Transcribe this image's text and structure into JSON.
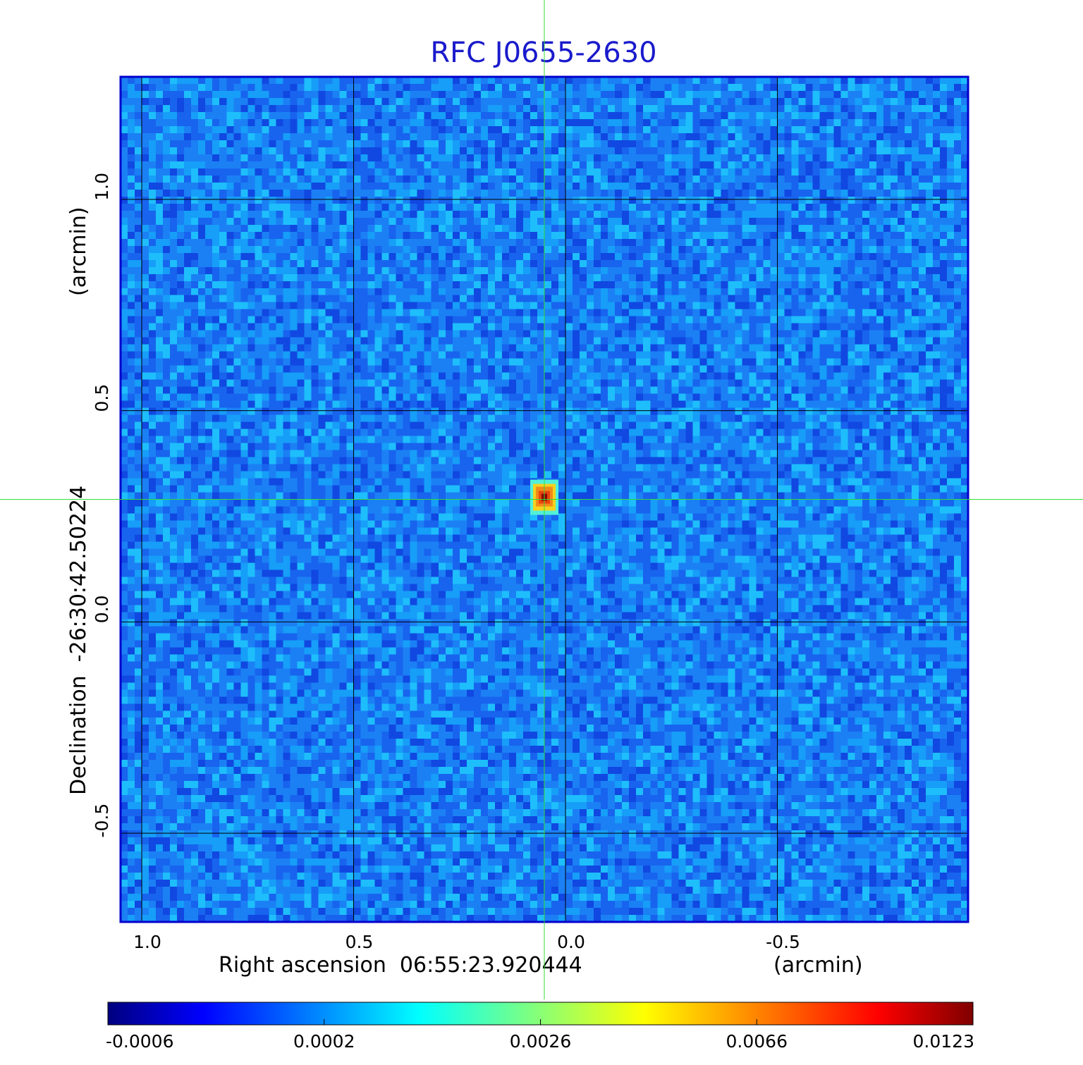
{
  "colors": {
    "title": "#1a1acc",
    "frame": "#0000cc",
    "grid": "#000000",
    "crosshair": "#33dd33",
    "background_field": "#1e6ef0"
  },
  "chart_data": {
    "type": "heatmap",
    "title": "RFC J0655-2630",
    "xlabel": "Right ascension  06:55:23.920444",
    "xunit": "(arcmin)",
    "ylabel": "Declination  -26:30:42.50224",
    "yunit": "(arcmin)",
    "xlim": [
      1.05,
      -0.95
    ],
    "ylim": [
      -0.71,
      1.29
    ],
    "x_ticks": [
      1.0,
      0.5,
      0.0,
      -0.5
    ],
    "x_tick_labels": [
      "1.0",
      "0.5",
      "0.0",
      "-0.5"
    ],
    "y_ticks": [
      -0.5,
      0.0,
      0.5,
      1.0
    ],
    "y_tick_labels": [
      "-0.5",
      "0.0",
      "0.5",
      "1.0"
    ],
    "grid": true,
    "crosshair": {
      "x": 0.05,
      "y": 0.29
    },
    "source_peak": {
      "x": 0.05,
      "y": 0.29,
      "value": 0.0123
    },
    "colormap": "jet",
    "colorbar": {
      "orientation": "horizontal",
      "tick_labels": [
        "-0.0006",
        "0.0002",
        "0.0026",
        "0.0066",
        "0.0123"
      ],
      "min": -0.0006,
      "max": 0.0123
    }
  }
}
